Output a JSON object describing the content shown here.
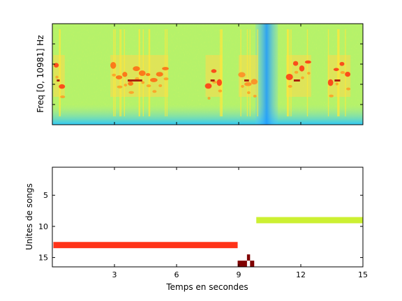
{
  "chart_data": [
    {
      "type": "heatmap",
      "ylabel": "Freq [0, 10981] Hz",
      "xlabel": "",
      "xlim": [
        0,
        15
      ],
      "ylim": [
        0,
        10981
      ],
      "colormap": "jet",
      "background_color": "#b5f26a",
      "low_band_color": "#33ccff",
      "events": [
        {
          "start": 0.05,
          "end": 0.6,
          "color": "#ff3311"
        },
        {
          "start": 2.8,
          "end": 5.6,
          "color": "#ff6611"
        },
        {
          "start": 7.4,
          "end": 8.2,
          "color": "#ff3311"
        },
        {
          "start": 9.0,
          "end": 9.9,
          "color": "#ff8822"
        },
        {
          "start": 11.3,
          "end": 12.5,
          "color": "#ff3311"
        },
        {
          "start": 13.3,
          "end": 14.4,
          "color": "#ff3311"
        }
      ],
      "noise_band": {
        "start": 9.8,
        "end": 10.9,
        "color": "#33aaff"
      }
    },
    {
      "type": "bar",
      "orientation": "horizontal-spans",
      "xlabel": "Temps en secondes",
      "ylabel": "Unites de songs",
      "xlim": [
        0,
        15
      ],
      "ylim": [
        0.5,
        16.5
      ],
      "y_inverted": true,
      "xticks": [
        "3",
        "6",
        "9",
        "12",
        "15"
      ],
      "xtick_values": [
        3,
        6,
        9,
        12,
        15
      ],
      "yticks": [
        "5",
        "10",
        "15"
      ],
      "ytick_values": [
        5,
        10,
        15
      ],
      "spans": [
        {
          "unit": 9,
          "start": 9.85,
          "end": 15.0,
          "color": "#ccf032"
        },
        {
          "unit": 13,
          "start": 0.05,
          "end": 8.95,
          "color": "#ff3319"
        },
        {
          "unit": 15,
          "start": 9.4,
          "end": 9.55,
          "color": "#800000"
        },
        {
          "unit": 16,
          "start": 8.95,
          "end": 9.4,
          "color": "#800000"
        },
        {
          "unit": 16,
          "start": 9.55,
          "end": 9.75,
          "color": "#800000"
        }
      ]
    }
  ]
}
